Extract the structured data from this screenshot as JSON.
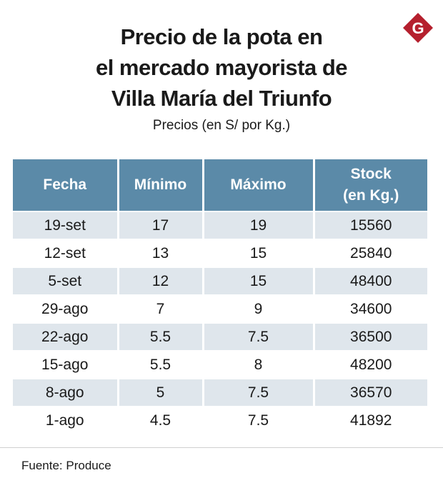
{
  "brand": {
    "logo_letter": "G",
    "logo_color": "#b5202e"
  },
  "title_lines": [
    "Precio de la pota en",
    "el mercado mayorista de",
    "Villa María del Triunfo"
  ],
  "subtitle": "Precios (en S/ por Kg.)",
  "source": "Fuente: Produce",
  "colors": {
    "header_bg": "#5b8aa8",
    "row_shade": "#dfe6ec"
  },
  "chart_data": {
    "type": "table",
    "columns": [
      "Fecha",
      "Mínimo",
      "Máximo",
      "Stock (en Kg.)"
    ],
    "column_display": [
      [
        "Fecha"
      ],
      [
        "Mínimo"
      ],
      [
        "Máximo"
      ],
      [
        "Stock",
        "(en Kg.)"
      ]
    ],
    "rows": [
      [
        "19-set",
        "17",
        "19",
        "15560"
      ],
      [
        "12-set",
        "13",
        "15",
        "25840"
      ],
      [
        "5-set",
        "12",
        "15",
        "48400"
      ],
      [
        "29-ago",
        "7",
        "9",
        "34600"
      ],
      [
        "22-ago",
        "5.5",
        "7.5",
        "36500"
      ],
      [
        "15-ago",
        "5.5",
        "8",
        "48200"
      ],
      [
        "8-ago",
        "5",
        "7.5",
        "36570"
      ],
      [
        "1-ago",
        "4.5",
        "7.5",
        "41892"
      ]
    ]
  }
}
